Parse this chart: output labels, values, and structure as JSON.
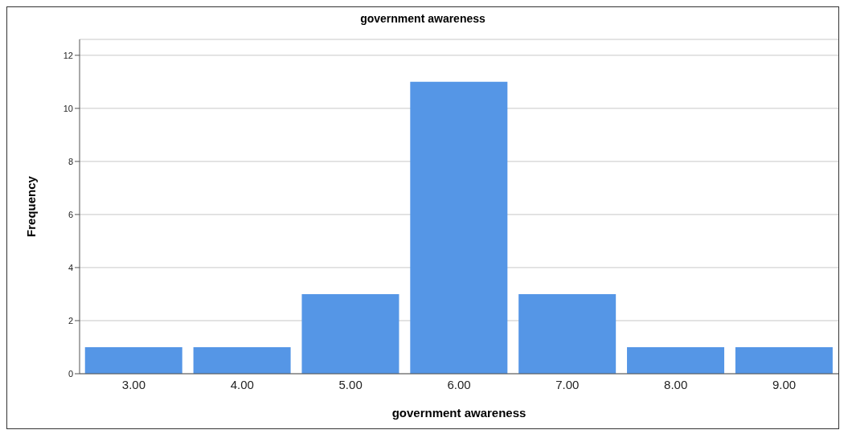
{
  "chart_data": {
    "type": "bar",
    "title": "government awareness",
    "xlabel": "government awareness",
    "ylabel": "Frequency",
    "categories": [
      "3.00",
      "4.00",
      "5.00",
      "6.00",
      "7.00",
      "8.00",
      "9.00"
    ],
    "values": [
      1,
      1,
      3,
      11,
      3,
      1,
      1
    ],
    "color": "#5596e6",
    "ylim": [
      0,
      12.6
    ],
    "yticks": [
      0,
      2,
      4,
      6,
      8,
      10,
      12
    ],
    "grid": "y"
  }
}
